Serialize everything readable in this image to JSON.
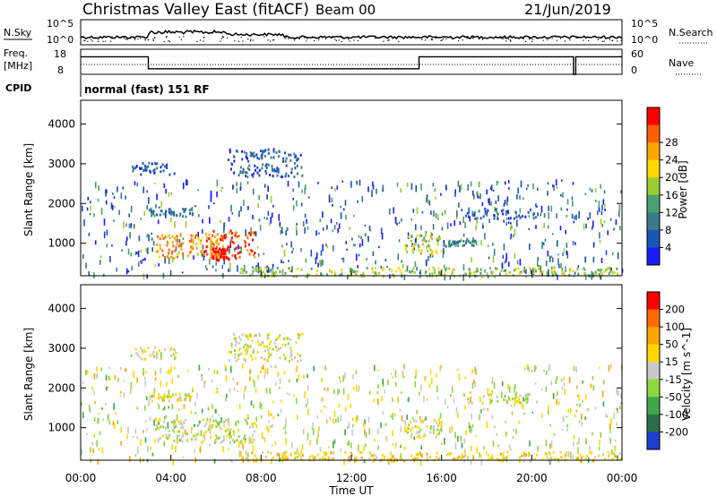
{
  "header": {
    "station": "Christmas Valley East (fitACF)",
    "beam": "Beam 00",
    "date": "21/Jun/2019"
  },
  "nsky_panel": {
    "left_label": "N.Sky",
    "right_label": "N.Search",
    "left_ticks": [
      "10^5",
      "10^0"
    ],
    "right_ticks": [
      "10^5",
      "10^0"
    ]
  },
  "freq_panel": {
    "left_label_line1": "Freq.",
    "left_label_line2": "[MHz]",
    "right_label": "Nave",
    "left_ticks": [
      "18",
      "8"
    ],
    "right_ticks": [
      "60",
      "0"
    ],
    "freq_mhz_segments": [
      {
        "start_h": 0.0,
        "end_h": 3.0,
        "value": 15.0
      },
      {
        "start_h": 3.0,
        "end_h": 15.0,
        "value": 10.2
      },
      {
        "start_h": 15.0,
        "end_h": 21.85,
        "value": 15.0
      },
      {
        "start_h": 21.85,
        "end_h": 21.95,
        "value": 8.0
      },
      {
        "start_h": 21.95,
        "end_h": 24.0,
        "value": 15.0
      }
    ]
  },
  "cpid": {
    "label": "CPID",
    "value": "normal (fast) 151 RF"
  },
  "time_axis": {
    "label": "Time UT",
    "ticks": [
      "00:00",
      "04:00",
      "08:00",
      "12:00",
      "16:00",
      "20:00",
      "00:00"
    ],
    "range_hours": [
      0,
      24
    ]
  },
  "chart_data": [
    {
      "type": "heatmap",
      "quantity": "power",
      "ylabel": "Slant Range [km]",
      "ylim": [
        180,
        4600
      ],
      "yticks": [
        1000,
        2000,
        3000,
        4000
      ],
      "xlim": [
        0,
        24
      ],
      "colorbar": {
        "label": "Power [dB]",
        "ticks": [
          "4",
          "8",
          "12",
          "16",
          "20",
          "24",
          "28"
        ],
        "colors": [
          "#1a1aff",
          "#1a55b8",
          "#3a7a8a",
          "#4aa070",
          "#9acd32",
          "#ffd700",
          "#ffa500",
          "#ff6000",
          "#ff0000"
        ]
      },
      "regions": [
        {
          "t0": 3.3,
          "t1": 6.3,
          "r0": 650,
          "r1": 1250,
          "level": 0.75
        },
        {
          "t0": 5.5,
          "t1": 7.7,
          "r0": 650,
          "r1": 1350,
          "level": 0.85
        },
        {
          "t0": 5.8,
          "t1": 6.6,
          "r0": 600,
          "r1": 900,
          "level": 1.0
        },
        {
          "t0": 14.3,
          "t1": 16.0,
          "r0": 750,
          "r1": 1250,
          "level": 0.55
        },
        {
          "t0": 7.0,
          "t1": 24.0,
          "r0": 180,
          "r1": 420,
          "level": 0.5
        },
        {
          "t0": 2.2,
          "t1": 4.2,
          "r0": 2750,
          "r1": 3050,
          "level": 0.2
        },
        {
          "t0": 6.5,
          "t1": 9.8,
          "r0": 2700,
          "r1": 3400,
          "level": 0.2
        },
        {
          "t0": 3.0,
          "t1": 5.0,
          "r0": 1700,
          "r1": 1900,
          "level": 0.3
        },
        {
          "t0": 16.8,
          "t1": 20.2,
          "r0": 1650,
          "r1": 1900,
          "level": 0.2
        },
        {
          "t0": 16.0,
          "t1": 17.5,
          "r0": 950,
          "r1": 1100,
          "level": 0.3
        }
      ]
    },
    {
      "type": "heatmap",
      "quantity": "velocity",
      "ylabel": "Slant Range [km]",
      "ylim": [
        180,
        4600
      ],
      "yticks": [
        1000,
        2000,
        3000,
        4000
      ],
      "xlim": [
        0,
        24
      ],
      "colorbar": {
        "label": "Velocity [m s^-1]",
        "ticks": [
          "200",
          "100",
          "50",
          "15",
          "-15",
          "-50",
          "-100",
          "-200"
        ],
        "colors": [
          "#1f3fd0",
          "#2d6f4a",
          "#3ea84e",
          "#8fd63e",
          "#c8c8c8",
          "#ffd700",
          "#ffa500",
          "#ff6a00",
          "#ff0000"
        ]
      },
      "regions": [
        {
          "t0": 3.3,
          "t1": 7.7,
          "r0": 650,
          "r1": 1250,
          "level": 0.45
        },
        {
          "t0": 14.3,
          "t1": 16.0,
          "r0": 750,
          "r1": 1250,
          "level": 0.5
        },
        {
          "t0": 7.0,
          "t1": 24.0,
          "r0": 180,
          "r1": 420,
          "level": 0.62
        },
        {
          "t0": 2.2,
          "t1": 4.2,
          "r0": 2750,
          "r1": 3050,
          "level": 0.5
        },
        {
          "t0": 6.5,
          "t1": 9.8,
          "r0": 2700,
          "r1": 3400,
          "level": 0.5
        },
        {
          "t0": 3.0,
          "t1": 5.0,
          "r0": 1700,
          "r1": 1900,
          "level": 0.5
        },
        {
          "t0": 16.8,
          "t1": 20.2,
          "r0": 1650,
          "r1": 1900,
          "level": 0.5
        }
      ]
    }
  ]
}
